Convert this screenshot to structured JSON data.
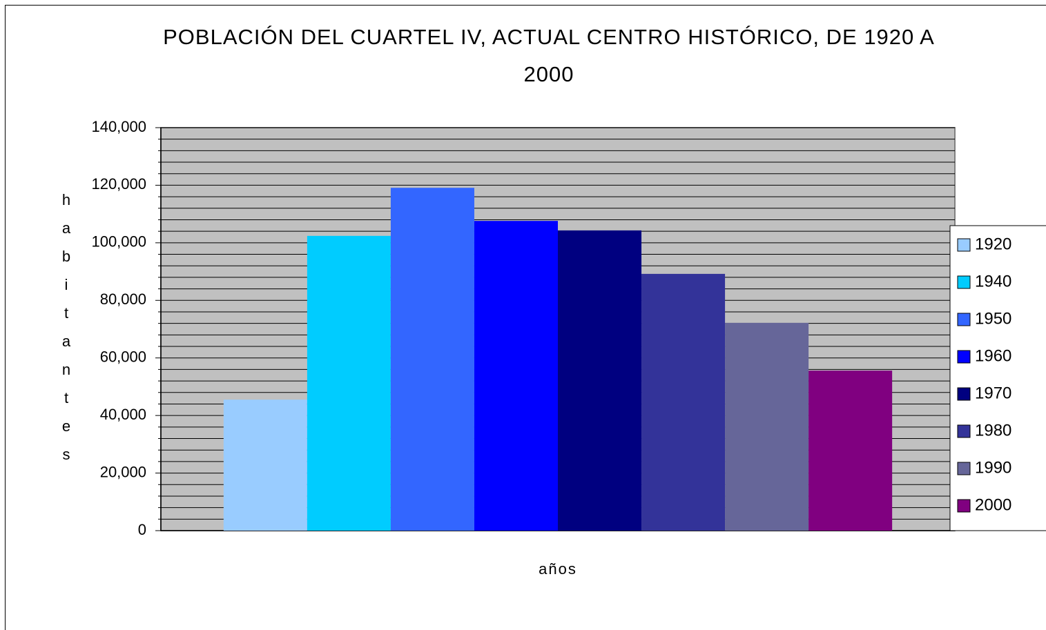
{
  "chart_data": {
    "type": "bar",
    "title": "POBLACIÓN DEL CUARTEL IV, ACTUAL CENTRO HISTÓRICO, DE 1920 A 2000",
    "x_label": "años",
    "y_label": "habitantes",
    "categories": [
      null
    ],
    "series": [
      {
        "name": "1920",
        "color": "#99ccff",
        "values": [
          45500
        ]
      },
      {
        "name": "1940",
        "color": "#00ccff",
        "values": [
          102400
        ]
      },
      {
        "name": "1950",
        "color": "#3366ff",
        "values": [
          119100
        ]
      },
      {
        "name": "1960",
        "color": "#0000ff",
        "values": [
          107600
        ]
      },
      {
        "name": "1970",
        "color": "#000080",
        "values": [
          104300
        ]
      },
      {
        "name": "1980",
        "color": "#333399",
        "values": [
          89200
        ]
      },
      {
        "name": "1990",
        "color": "#666699",
        "values": [
          72200
        ]
      },
      {
        "name": "2000",
        "color": "#800080",
        "values": [
          55600
        ]
      }
    ],
    "ylim": [
      0,
      140000
    ],
    "yticks": [
      0,
      {
        "value": 20000,
        "label": "20,000"
      },
      {
        "value": 40000,
        "label": "40,000"
      },
      {
        "value": 60000,
        "label": "60,000"
      },
      {
        "value": 80000,
        "label": "80,000"
      },
      {
        "value": 100000,
        "label": "100,000"
      },
      {
        "value": 120000,
        "label": "120,000"
      },
      {
        "value": 140000,
        "label": "140,000"
      }
    ],
    "grid": true,
    "minor_grid_divisions": 5,
    "plot_background": "#c0c0c0",
    "legend": "right"
  }
}
